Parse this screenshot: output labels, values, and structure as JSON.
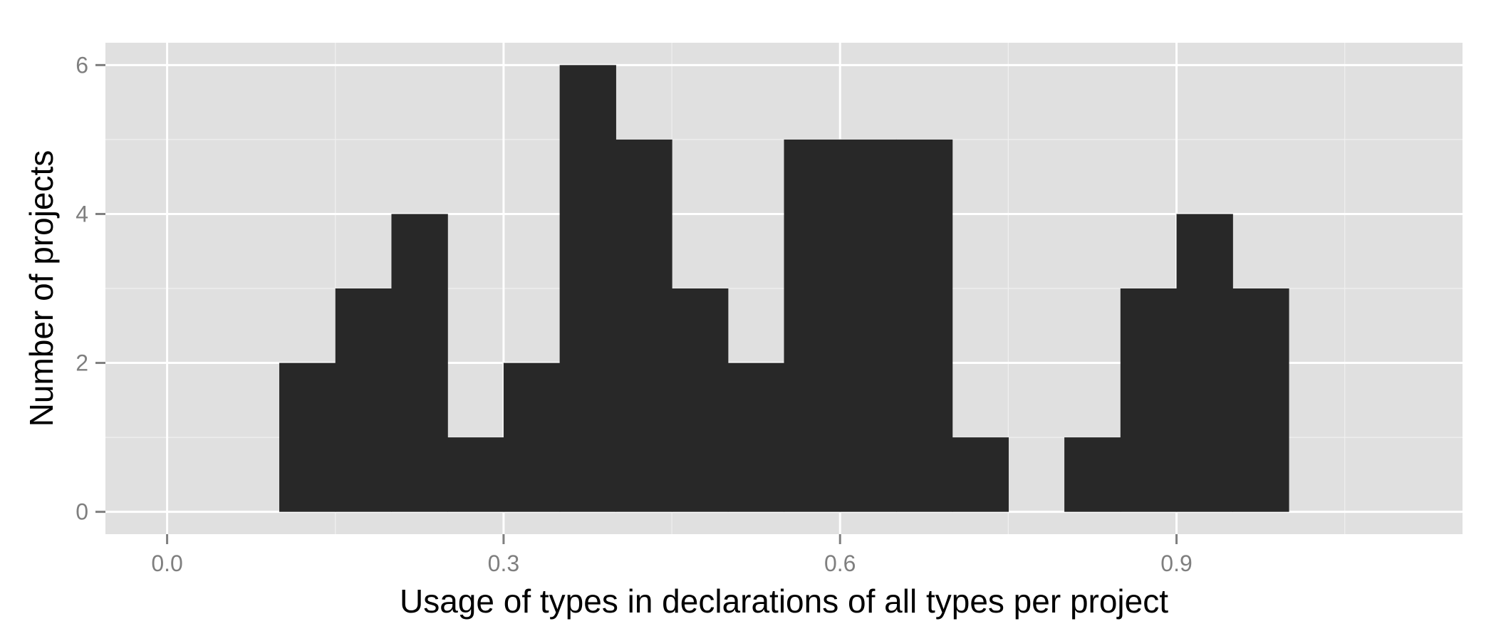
{
  "chart_data": {
    "type": "bar",
    "subtype": "histogram",
    "xlabel": "Usage of types in declarations of all types per project",
    "ylabel": "Number of projects",
    "xlim": [
      -0.055,
      1.155
    ],
    "ylim": [
      -0.3,
      6.3
    ],
    "x_ticks": [
      0.0,
      0.3,
      0.6,
      0.9
    ],
    "x_tick_labels": [
      "0.0",
      "0.3",
      "0.6",
      "0.9"
    ],
    "y_ticks": [
      0,
      2,
      4,
      6
    ],
    "y_tick_labels": [
      "0",
      "2",
      "4",
      "6"
    ],
    "grid": true,
    "bin_width": 0.05,
    "bins": [
      {
        "x0": 0.1,
        "x1": 0.15,
        "count": 2
      },
      {
        "x0": 0.15,
        "x1": 0.2,
        "count": 3
      },
      {
        "x0": 0.2,
        "x1": 0.25,
        "count": 4
      },
      {
        "x0": 0.25,
        "x1": 0.3,
        "count": 1
      },
      {
        "x0": 0.3,
        "x1": 0.35,
        "count": 2
      },
      {
        "x0": 0.35,
        "x1": 0.4,
        "count": 6
      },
      {
        "x0": 0.4,
        "x1": 0.45,
        "count": 5
      },
      {
        "x0": 0.45,
        "x1": 0.5,
        "count": 3
      },
      {
        "x0": 0.5,
        "x1": 0.55,
        "count": 2
      },
      {
        "x0": 0.55,
        "x1": 0.6,
        "count": 5
      },
      {
        "x0": 0.6,
        "x1": 0.65,
        "count": 5
      },
      {
        "x0": 0.65,
        "x1": 0.7,
        "count": 5
      },
      {
        "x0": 0.7,
        "x1": 0.75,
        "count": 1
      },
      {
        "x0": 0.75,
        "x1": 0.8,
        "count": 0
      },
      {
        "x0": 0.8,
        "x1": 0.85,
        "count": 1
      },
      {
        "x0": 0.85,
        "x1": 0.9,
        "count": 3
      },
      {
        "x0": 0.9,
        "x1": 0.95,
        "count": 4
      },
      {
        "x0": 0.95,
        "x1": 1.0,
        "count": 3
      }
    ],
    "colors": {
      "panel_background": "#e0e0e0",
      "bar_fill": "#282828",
      "grid_major": "#ffffff",
      "grid_minor": "#f0f0f0",
      "tick_mark": "#7f7f7f"
    }
  }
}
